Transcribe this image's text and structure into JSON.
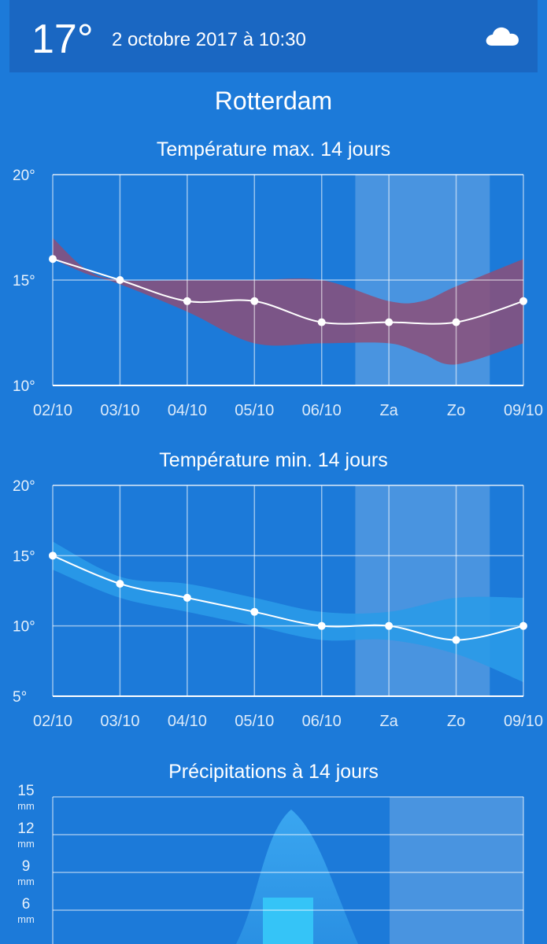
{
  "header": {
    "temperature": "17°",
    "date": "2 octobre 2017 à 10:30",
    "weather_icon": "cloud-icon"
  },
  "city": "Rotterdam",
  "colors": {
    "background": "#1c7ad9",
    "header": "#1a67c2",
    "max_band": "#8c4f78",
    "min_band": "#2a9ae8",
    "weekend_shade": "rgba(255,255,255,0.2)"
  },
  "chart_data": [
    {
      "type": "line",
      "title": "Température max. 14 jours",
      "categories": [
        "02/10",
        "03/10",
        "04/10",
        "05/10",
        "06/10",
        "Za",
        "Zo",
        "09/10"
      ],
      "x_tick_labels": [
        "02/10",
        "03/10",
        "04/10",
        "05/10",
        "06/10",
        "Za",
        "Zo",
        "09/10"
      ],
      "y_tick_labels": [
        "20°",
        "15°",
        "10°"
      ],
      "ylim": [
        10,
        20
      ],
      "yticks": [
        10,
        15,
        20
      ],
      "series": [
        {
          "values": [
            16,
            15,
            14,
            14,
            13,
            13,
            13,
            14
          ]
        }
      ],
      "band": {
        "x": [
          0,
          0.5,
          1,
          2,
          3,
          4,
          5,
          5.5,
          6,
          7
        ],
        "upper": [
          17,
          15.5,
          15,
          15,
          15,
          15,
          14,
          14,
          14.7,
          16
        ],
        "lower": [
          16,
          15.3,
          14.8,
          13.5,
          12,
          12,
          12,
          11.5,
          11,
          12
        ]
      },
      "weekend_range": [
        4.5,
        6.5
      ],
      "grid": true
    },
    {
      "type": "line",
      "title": "Température min. 14 jours",
      "categories": [
        "02/10",
        "03/10",
        "04/10",
        "05/10",
        "06/10",
        "Za",
        "Zo",
        "09/10"
      ],
      "x_tick_labels": [
        "02/10",
        "03/10",
        "04/10",
        "05/10",
        "06/10",
        "Za",
        "Zo",
        "09/10"
      ],
      "y_tick_labels": [
        "20°",
        "15°",
        "10°",
        "5°"
      ],
      "ylim": [
        5,
        20
      ],
      "yticks": [
        5,
        10,
        15,
        20
      ],
      "series": [
        {
          "values": [
            15,
            13,
            12,
            11,
            10,
            10,
            9,
            10
          ]
        }
      ],
      "band": {
        "x": [
          0,
          1,
          2,
          3,
          4,
          5,
          6,
          7
        ],
        "upper": [
          16,
          13.5,
          13,
          12,
          11,
          11,
          12,
          12
        ],
        "lower": [
          14,
          12,
          11,
          10,
          9,
          9,
          8,
          6
        ]
      },
      "weekend_range": [
        4.5,
        6.5
      ],
      "grid": true
    },
    {
      "type": "area",
      "title": "Précipitations à 14 jours",
      "y_tick_labels": [
        "15",
        "12",
        "9",
        "6"
      ],
      "y_unit": "mm",
      "ylim": [
        0,
        15
      ],
      "yticks": [
        6,
        9,
        12,
        15
      ],
      "peak_value": 14,
      "bar_value": 7,
      "grid": true
    }
  ]
}
